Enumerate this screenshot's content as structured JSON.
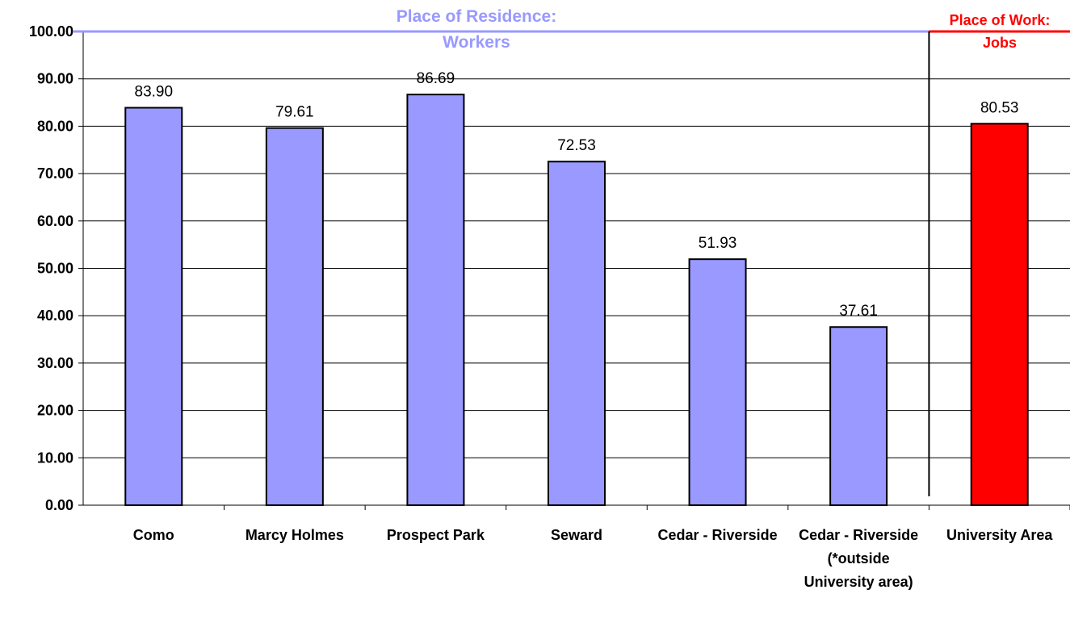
{
  "chart_data": {
    "type": "bar",
    "categories": [
      "Como",
      "Marcy Holmes",
      "Prospect Park",
      "Seward",
      "Cedar - Riverside",
      "Cedar - Riverside (*outside University area)",
      "University Area"
    ],
    "values": [
      83.9,
      79.61,
      86.69,
      72.53,
      51.93,
      37.61,
      80.53
    ],
    "value_labels": [
      "83.90",
      "79.61",
      "86.69",
      "72.53",
      "51.93",
      "37.61",
      "80.53"
    ],
    "colors": [
      "#9999ff",
      "#9999ff",
      "#9999ff",
      "#9999ff",
      "#9999ff",
      "#9999ff",
      "#ff0000"
    ],
    "ylim": [
      0,
      100
    ],
    "yticks": [
      {
        "value": 0,
        "label": "0.00"
      },
      {
        "value": 10,
        "label": "10.00"
      },
      {
        "value": 20,
        "label": "20.00"
      },
      {
        "value": 30,
        "label": "30.00"
      },
      {
        "value": 40,
        "label": "40.00"
      },
      {
        "value": 50,
        "label": "50.00"
      },
      {
        "value": 60,
        "label": "60.00"
      },
      {
        "value": 70,
        "label": "70.00"
      },
      {
        "value": 80,
        "label": "80.00"
      },
      {
        "value": 90,
        "label": "90.00"
      },
      {
        "value": 100,
        "label": "100.00"
      }
    ],
    "grid": true,
    "annotations": [
      {
        "text": "Place of Residence: Workers",
        "color": "#9999ff"
      },
      {
        "text": "Place of Work: Jobs",
        "color": "#ff0000"
      }
    ]
  }
}
